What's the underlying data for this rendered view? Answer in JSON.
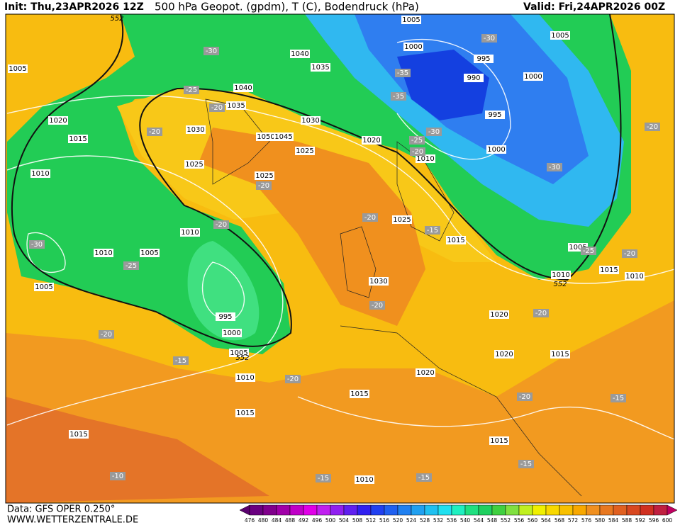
{
  "header": {
    "init": "Init: Thu,23APR2026 12Z",
    "title": "500 hPa Geopot. (gpdm), T (C), Bodendruck (hPa)",
    "valid": "Valid: Fri,24APR2026 00Z"
  },
  "footer": {
    "data": "Data: GFS OPER 0.250°",
    "site": "WWW.WETTERZENTRALE.DE"
  },
  "colorbar": {
    "levels": [
      476,
      480,
      484,
      488,
      492,
      496,
      500,
      504,
      508,
      512,
      516,
      520,
      524,
      528,
      532,
      536,
      540,
      544,
      548,
      552,
      556,
      560,
      564,
      568,
      572,
      576,
      580,
      584,
      588,
      592,
      596,
      600
    ],
    "colors": [
      "#5a006e",
      "#6a0080",
      "#80008c",
      "#a000a8",
      "#c000c8",
      "#e000e8",
      "#c020f0",
      "#9020f0",
      "#6020f0",
      "#3020f0",
      "#2040f0",
      "#2060f0",
      "#2080f0",
      "#20a0f0",
      "#20c0f0",
      "#20e0f0",
      "#20f0c0",
      "#20e080",
      "#20d060",
      "#40d040",
      "#80e040",
      "#c0f020",
      "#f0f000",
      "#f8d800",
      "#f8c000",
      "#f8a800",
      "#f09020",
      "#e87820",
      "#e06020",
      "#d84820",
      "#d03020",
      "#c02040",
      "#c00060"
    ]
  },
  "pressure_labels": [
    1005,
    1005,
    1000,
    1040,
    1035,
    995,
    1005,
    1000,
    990,
    1040,
    1035,
    995,
    1030,
    1020,
    1015,
    1030,
    1050,
    1045,
    1025,
    1020,
    1000,
    1010,
    1025,
    1010,
    1025,
    1025,
    1010,
    1015,
    1010,
    1005,
    1005,
    1015,
    1010,
    1010,
    1005,
    1030,
    995,
    1020,
    1000,
    1005,
    1020,
    1015,
    1010,
    1020,
    1015,
    1015,
    1015,
    1015,
    1010
  ],
  "temperature_labels": [
    -30,
    -30,
    -35,
    -25,
    -35,
    -20,
    -20,
    -30,
    -25,
    -20,
    -20,
    -30,
    -20,
    -20,
    -15,
    -20,
    -30,
    -25,
    -25,
    -20,
    -20,
    -20,
    -20,
    -15,
    -20,
    -20,
    -15,
    -10,
    -15,
    -15,
    -15
  ],
  "height_labels": [
    552,
    552,
    552
  ]
}
